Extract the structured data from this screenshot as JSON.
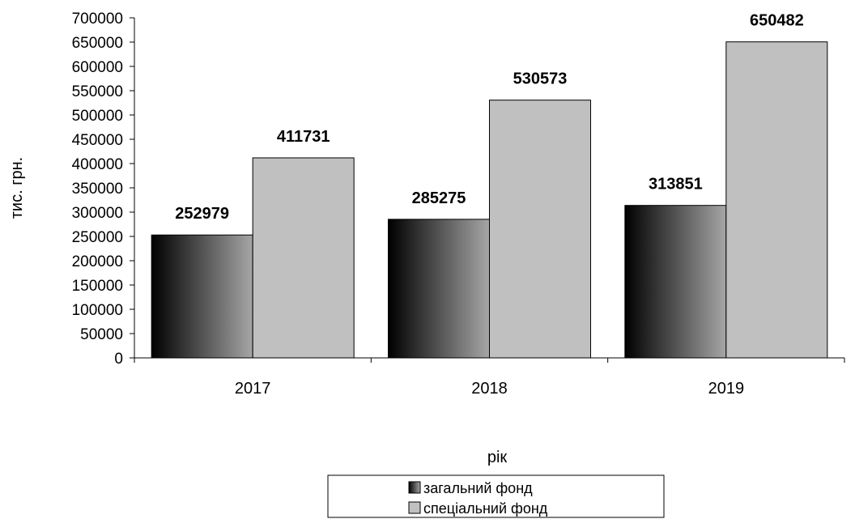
{
  "chart_data": {
    "type": "bar",
    "categories": [
      "2017",
      "2018",
      "2019"
    ],
    "series": [
      {
        "name": "загальний фонд",
        "values": [
          252979,
          285275,
          313851
        ],
        "style": "gradient-black-gray"
      },
      {
        "name": "спеціальний фонд",
        "values": [
          411731,
          530573,
          650482
        ],
        "color": "#c0c0c0"
      }
    ],
    "data_labels": {
      "s0": [
        "252979",
        "285275",
        "313851"
      ],
      "s1": [
        "411731",
        "530573",
        "650482"
      ]
    },
    "title": "",
    "xlabel": "рік",
    "ylabel": "тис. грн.",
    "ylim": [
      0,
      700000
    ],
    "ytick_step": 50000,
    "yticks": [
      "0",
      "50000",
      "100000",
      "150000",
      "200000",
      "250000",
      "300000",
      "350000",
      "400000",
      "450000",
      "500000",
      "550000",
      "600000",
      "650000",
      "700000"
    ],
    "grid": false,
    "legend_position": "bottom"
  }
}
